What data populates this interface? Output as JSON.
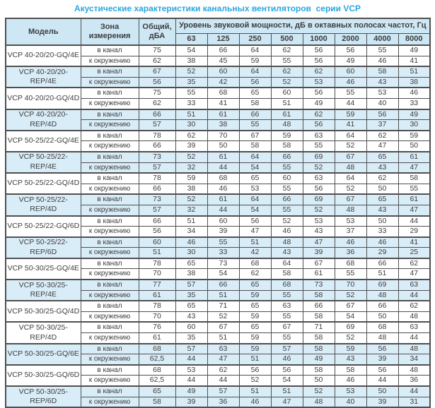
{
  "title": "Акустические характеристики канальных вентиляторов  серии VCP",
  "colors": {
    "title_text": "#29a6de",
    "header_background": "#cde7f5",
    "shaded_row_background": "#d9edf8",
    "border": "#4f4f4f",
    "body_text": "#3d3d3d"
  },
  "table": {
    "headers": {
      "model": "Модель",
      "zone": "Зона измерения",
      "total": "Общий, дБА",
      "octave_span": "Уровень звуковой мощности, дБ в октавных полосах частот, Гц",
      "frequencies": [
        "63",
        "125",
        "250",
        "500",
        "1000",
        "2000",
        "4000",
        "8000"
      ]
    },
    "zone_labels": {
      "duct": "в канал",
      "ambient": "к окружению"
    },
    "rows": [
      {
        "model": "VCP 40-20/20-GQ/4E",
        "shaded": false,
        "duct": {
          "total": "75",
          "bands": [
            54,
            66,
            64,
            62,
            56,
            56,
            55,
            49
          ]
        },
        "ambient": {
          "total": "62",
          "bands": [
            38,
            45,
            59,
            55,
            56,
            49,
            46,
            41
          ]
        }
      },
      {
        "model": "VCP 40-20/20-REP/4E",
        "shaded": true,
        "duct": {
          "total": "67",
          "bands": [
            52,
            60,
            64,
            62,
            62,
            60,
            58,
            51
          ]
        },
        "ambient": {
          "total": "56",
          "bands": [
            35,
            42,
            56,
            52,
            53,
            46,
            43,
            38
          ]
        }
      },
      {
        "model": "VCP 40-20/20-GQ/4D",
        "shaded": false,
        "duct": {
          "total": "75",
          "bands": [
            55,
            68,
            65,
            60,
            56,
            55,
            53,
            46
          ]
        },
        "ambient": {
          "total": "62",
          "bands": [
            33,
            41,
            58,
            51,
            49,
            44,
            40,
            33
          ]
        }
      },
      {
        "model": "VCP 40-20/20-REP/4D",
        "shaded": true,
        "duct": {
          "total": "66",
          "bands": [
            51,
            61,
            66,
            61,
            62,
            59,
            56,
            49
          ]
        },
        "ambient": {
          "total": "57",
          "bands": [
            30,
            38,
            55,
            48,
            56,
            41,
            37,
            30
          ]
        }
      },
      {
        "model": "VCP 50-25/22-GQ/4E",
        "shaded": false,
        "duct": {
          "total": "78",
          "bands": [
            62,
            70,
            67,
            59,
            63,
            64,
            62,
            59
          ]
        },
        "ambient": {
          "total": "66",
          "bands": [
            39,
            50,
            58,
            58,
            55,
            52,
            47,
            50
          ]
        }
      },
      {
        "model": "VCP 50-25/22-REP/4E",
        "shaded": true,
        "duct": {
          "total": "73",
          "bands": [
            52,
            61,
            64,
            66,
            69,
            67,
            65,
            61
          ]
        },
        "ambient": {
          "total": "57",
          "bands": [
            32,
            44,
            54,
            55,
            52,
            48,
            43,
            47
          ]
        }
      },
      {
        "model": "VCP 50-25/22-GQ/4D",
        "shaded": false,
        "duct": {
          "total": "78",
          "bands": [
            59,
            68,
            65,
            60,
            63,
            64,
            62,
            58
          ]
        },
        "ambient": {
          "total": "66",
          "bands": [
            38,
            46,
            53,
            55,
            56,
            52,
            50,
            55
          ]
        }
      },
      {
        "model": "VCP 50-25/22-REP/4D",
        "shaded": true,
        "duct": {
          "total": "73",
          "bands": [
            52,
            61,
            64,
            66,
            69,
            67,
            65,
            61
          ]
        },
        "ambient": {
          "total": "57",
          "bands": [
            32,
            44,
            54,
            55,
            52,
            48,
            43,
            47
          ]
        }
      },
      {
        "model": "VCP 50-25/22-GQ/6D",
        "shaded": false,
        "duct": {
          "total": "66",
          "bands": [
            51,
            60,
            56,
            52,
            53,
            53,
            50,
            44
          ]
        },
        "ambient": {
          "total": "56",
          "bands": [
            34,
            39,
            47,
            46,
            43,
            37,
            33,
            29
          ]
        }
      },
      {
        "model": "VCP 50-25/22-REP/6D",
        "shaded": true,
        "duct": {
          "total": "60",
          "bands": [
            46,
            55,
            51,
            48,
            47,
            46,
            46,
            41
          ]
        },
        "ambient": {
          "total": "51",
          "bands": [
            30,
            33,
            42,
            43,
            39,
            36,
            29,
            25
          ]
        }
      },
      {
        "model": "VCP 50-30/25-GQ/4E",
        "shaded": false,
        "duct": {
          "total": "78",
          "bands": [
            65,
            73,
            68,
            64,
            67,
            68,
            66,
            62
          ]
        },
        "ambient": {
          "total": "70",
          "bands": [
            38,
            54,
            62,
            58,
            61,
            55,
            51,
            47
          ]
        }
      },
      {
        "model": "VCP 50-30/25-REP/4E",
        "shaded": true,
        "duct": {
          "total": "77",
          "bands": [
            57,
            66,
            65,
            68,
            73,
            70,
            69,
            63
          ]
        },
        "ambient": {
          "total": "61",
          "bands": [
            35,
            51,
            59,
            55,
            58,
            52,
            48,
            44
          ]
        }
      },
      {
        "model": "VCP 50-30/25-GQ/4D",
        "shaded": false,
        "duct": {
          "total": "78",
          "bands": [
            65,
            71,
            65,
            63,
            66,
            67,
            66,
            62
          ]
        },
        "ambient": {
          "total": "70",
          "bands": [
            43,
            52,
            59,
            55,
            58,
            54,
            50,
            48
          ]
        }
      },
      {
        "model": "VCP 50-30/25-REP/4D",
        "shaded": false,
        "duct": {
          "total": "76",
          "bands": [
            60,
            67,
            65,
            67,
            71,
            69,
            68,
            63
          ]
        },
        "ambient": {
          "total": "61",
          "bands": [
            35,
            51,
            59,
            55,
            58,
            52,
            48,
            44
          ]
        }
      },
      {
        "model": "VCP 50-30/25-GQ/6E",
        "shaded": true,
        "duct": {
          "total": "68",
          "bands": [
            57,
            63,
            59,
            57,
            58,
            59,
            56,
            48
          ]
        },
        "ambient": {
          "total": "62,5",
          "bands": [
            44,
            47,
            51,
            46,
            49,
            43,
            39,
            34
          ]
        }
      },
      {
        "model": "VCP 50-30/25-GQ/6D",
        "shaded": false,
        "duct": {
          "total": "68",
          "bands": [
            53,
            62,
            56,
            56,
            58,
            58,
            56,
            48
          ]
        },
        "ambient": {
          "total": "62,5",
          "bands": [
            44,
            44,
            52,
            54,
            50,
            46,
            44,
            36
          ]
        }
      },
      {
        "model": "VCP 50-30/25-REP/6D",
        "shaded": true,
        "duct": {
          "total": "65",
          "bands": [
            49,
            57,
            51,
            51,
            52,
            53,
            50,
            44
          ]
        },
        "ambient": {
          "total": "58",
          "bands": [
            39,
            36,
            46,
            47,
            48,
            40,
            39,
            31
          ]
        }
      }
    ]
  }
}
